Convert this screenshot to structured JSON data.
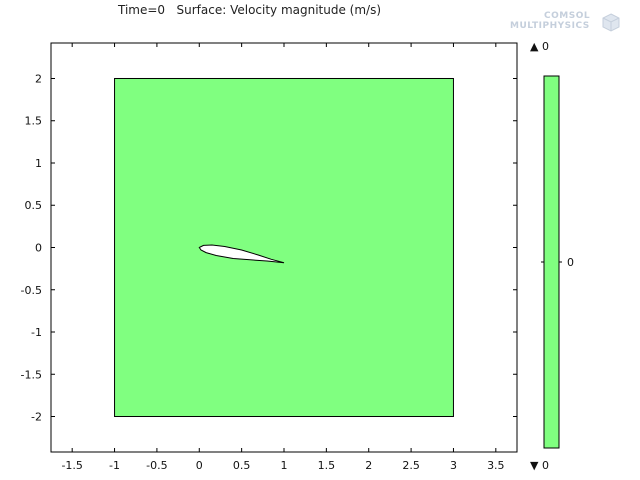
{
  "title": "Time=0   Surface: Velocity magnitude (m/s)",
  "logo": {
    "line1": "COMSOL",
    "line2": "MULTIPHYSICS"
  },
  "colors": {
    "surface": "#80ff80",
    "background": "#ffffff",
    "axis": "#000000"
  },
  "chart_data": {
    "type": "heatmap",
    "title": "Time=0   Surface: Velocity magnitude (m/s)",
    "xlim": [
      -1.75,
      3.75
    ],
    "ylim": [
      -2.42,
      2.42
    ],
    "xticks": [
      -1.5,
      -1,
      -0.5,
      0,
      0.5,
      1,
      1.5,
      2,
      2.5,
      3,
      3.5
    ],
    "xticklabels": [
      "-1.5",
      "-1",
      "-0.5",
      "0",
      "0.5",
      "1",
      "1.5",
      "2",
      "2.5",
      "3",
      "3.5"
    ],
    "yticks": [
      2,
      1.5,
      1,
      0.5,
      0,
      -0.5,
      -1,
      -1.5,
      -2
    ],
    "yticklabels": [
      "2",
      "1.5",
      "1",
      "0.5",
      "0",
      "-0.5",
      "-1",
      "-1.5",
      "-2"
    ],
    "domain": {
      "x": [
        -1,
        3
      ],
      "y": [
        -2,
        2
      ],
      "value": 0
    },
    "airfoil": {
      "upper": [
        [
          0,
          0
        ],
        [
          0.05,
          0.025
        ],
        [
          0.15,
          0.03
        ],
        [
          0.3,
          0.012
        ],
        [
          0.5,
          -0.03
        ],
        [
          0.7,
          -0.09
        ],
        [
          0.85,
          -0.14
        ],
        [
          1,
          -0.18
        ]
      ],
      "lower": [
        [
          1,
          -0.18
        ],
        [
          0.8,
          -0.16
        ],
        [
          0.6,
          -0.145
        ],
        [
          0.4,
          -0.13
        ],
        [
          0.2,
          -0.095
        ],
        [
          0.08,
          -0.06
        ],
        [
          0.02,
          -0.03
        ],
        [
          0,
          0
        ]
      ]
    },
    "colorbar": {
      "max_label": "▲ 0",
      "min_label": "▼ 0",
      "tick_label": "0"
    }
  }
}
